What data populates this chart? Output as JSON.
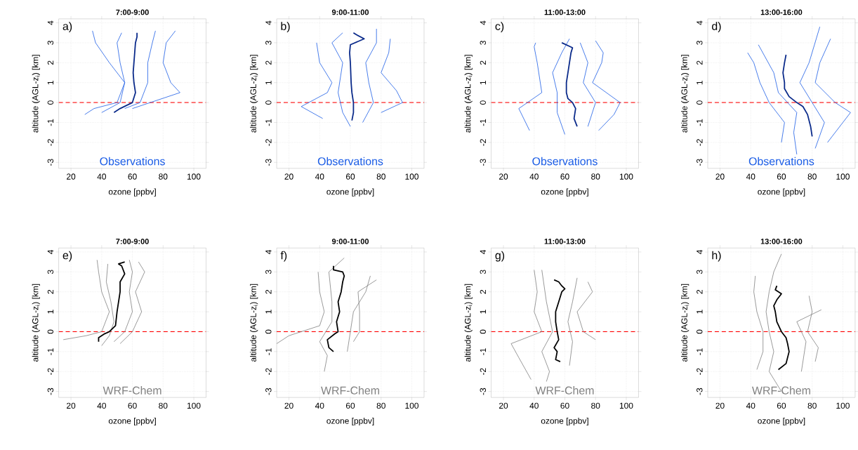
{
  "chart_data": [
    {
      "type": "line",
      "title": "7:00-9:00",
      "xlabel": "ozone [ppbv]",
      "ylabel": "altitude (AGL-z$_{i}$) [km]",
      "annotations": [
        "a)",
        "Observations"
      ],
      "xlim": [
        12,
        108
      ],
      "ylim": [
        -3.3,
        4.2
      ],
      "xticks": [
        20,
        40,
        60,
        80,
        100
      ],
      "yticks": [
        -3,
        -2,
        -1,
        0,
        1,
        2,
        3,
        4
      ],
      "grid": true,
      "ref_lines": [
        {
          "axis": "y",
          "value": 0,
          "color": "#ff0000",
          "line_style": "dashed"
        }
      ],
      "series": [
        {
          "color": "#1a5ce6",
          "x": [
            29,
            35,
            50,
            55,
            45,
            36,
            34
          ],
          "values": [
            -0.6,
            -0.3,
            0,
            1,
            2,
            3,
            3.6
          ]
        },
        {
          "color": "#1a5ce6",
          "x": [
            60,
            91,
            85,
            80,
            82,
            88
          ],
          "values": [
            -0.3,
            0.5,
            1,
            2,
            3,
            3.6
          ]
        },
        {
          "color": "#1a5ce6",
          "x": [
            40,
            52,
            55,
            52,
            50,
            53
          ],
          "values": [
            -0.5,
            0,
            1,
            2,
            3,
            3.5
          ]
        },
        {
          "color": "#1a5ce6",
          "x": [
            55,
            65,
            70,
            70,
            73,
            75
          ],
          "values": [
            -0.3,
            0,
            1,
            2,
            3,
            3.6
          ]
        },
        {
          "color": "#0a2a8a",
          "x": [
            48,
            52,
            60,
            62,
            61,
            60.5,
            61,
            61.5,
            62,
            63,
            63
          ],
          "values": [
            -0.5,
            -0.3,
            0,
            0.5,
            1,
            1.5,
            2,
            2.5,
            3,
            3.3,
            3.5
          ]
        }
      ]
    },
    {
      "type": "line",
      "title": "9:00-11:00",
      "xlabel": "ozone [ppbv]",
      "ylabel": "altitude (AGL-z$_{i}$) [km]",
      "annotations": [
        "b)",
        "Observations"
      ],
      "xlim": [
        12,
        108
      ],
      "ylim": [
        -3.3,
        4.2
      ],
      "xticks": [
        20,
        40,
        60,
        80,
        100
      ],
      "yticks": [
        -3,
        -2,
        -1,
        0,
        1,
        2,
        3,
        4
      ],
      "grid": true,
      "ref_lines": [
        {
          "axis": "y",
          "value": 0,
          "color": "#ff0000",
          "line_style": "dashed"
        }
      ],
      "series": [
        {
          "color": "#1a5ce6",
          "x": [
            42,
            28,
            45,
            48,
            40,
            38
          ],
          "values": [
            -0.8,
            -0.2,
            0.5,
            1,
            2,
            3
          ]
        },
        {
          "color": "#1a5ce6",
          "x": [
            80,
            94,
            90,
            80,
            85,
            86
          ],
          "values": [
            -0.5,
            0,
            0.6,
            1.5,
            2.5,
            3.2
          ]
        },
        {
          "color": "#1a5ce6",
          "x": [
            60,
            55,
            52,
            55,
            48,
            55
          ],
          "values": [
            -1.2,
            -0.5,
            0.5,
            2,
            3,
            3.5
          ]
        },
        {
          "color": "#1a5ce6",
          "x": [
            68,
            75,
            72,
            70,
            77,
            77
          ],
          "values": [
            -1,
            0,
            1,
            2,
            3,
            3.7
          ]
        },
        {
          "color": "#0a2a8a",
          "x": [
            61,
            62,
            62,
            61,
            60.5,
            60,
            59.5,
            60,
            69,
            64,
            62
          ],
          "values": [
            -0.9,
            -0.5,
            0,
            0.5,
            1,
            2,
            2.5,
            2.9,
            3.2,
            3.4,
            3.5
          ]
        }
      ]
    },
    {
      "type": "line",
      "title": "11:00-13:00",
      "xlabel": "ozone [ppbv]",
      "ylabel": "altitude (AGL-z$_{i}$) [km]",
      "annotations": [
        "c)",
        "Observations"
      ],
      "xlim": [
        12,
        108
      ],
      "ylim": [
        -3.3,
        4.2
      ],
      "xticks": [
        20,
        40,
        60,
        80,
        100
      ],
      "yticks": [
        -3,
        -2,
        -1,
        0,
        1,
        2,
        3,
        4
      ],
      "grid": true,
      "ref_lines": [
        {
          "axis": "y",
          "value": 0,
          "color": "#ff0000",
          "line_style": "dashed"
        }
      ],
      "series": [
        {
          "color": "#1a5ce6",
          "x": [
            37,
            30,
            45,
            42,
            40,
            41
          ],
          "values": [
            -1.4,
            -0.3,
            0.5,
            2,
            2.8,
            3.0
          ]
        },
        {
          "color": "#1a5ce6",
          "x": [
            82,
            92,
            96,
            78,
            84,
            85,
            80
          ],
          "values": [
            -1.4,
            -0.6,
            0,
            1,
            2,
            2.5,
            3.1
          ]
        },
        {
          "color": "#1a5ce6",
          "x": [
            60,
            55,
            55,
            52,
            58,
            63
          ],
          "values": [
            -1.6,
            -0.5,
            0.5,
            1.5,
            2.5,
            3.2
          ]
        },
        {
          "color": "#1a5ce6",
          "x": [
            75,
            80,
            72,
            75,
            70
          ],
          "values": [
            -1.2,
            0,
            1,
            2,
            3
          ]
        },
        {
          "color": "#0a2a8a",
          "x": [
            68,
            66,
            67,
            65,
            62,
            61,
            61,
            62,
            63,
            64,
            65,
            58
          ],
          "values": [
            -1.2,
            -0.8,
            -0.3,
            0,
            0.2,
            0.5,
            1,
            1.5,
            2,
            2.5,
            2.75,
            3.0
          ]
        }
      ]
    },
    {
      "type": "line",
      "title": "13:00-16:00",
      "xlabel": "ozone [ppbv]",
      "ylabel": "altitude (AGL-z$_{i}$) [km]",
      "annotations": [
        "d)",
        "Observations"
      ],
      "xlim": [
        12,
        108
      ],
      "ylim": [
        -3.3,
        4.2
      ],
      "xticks": [
        20,
        40,
        60,
        80,
        100
      ],
      "yticks": [
        -3,
        -2,
        -1,
        0,
        1,
        2,
        3,
        4
      ],
      "grid": true,
      "ref_lines": [
        {
          "axis": "y",
          "value": 0,
          "color": "#ff0000",
          "line_style": "dashed"
        }
      ],
      "series": [
        {
          "color": "#1a5ce6",
          "x": [
            60,
            62,
            52,
            46,
            42,
            38
          ],
          "values": [
            -2.0,
            -1,
            0,
            1,
            2,
            2.5
          ]
        },
        {
          "color": "#1a5ce6",
          "x": [
            90,
            100,
            105,
            95,
            82,
            85,
            92
          ],
          "values": [
            -2.0,
            -1,
            -0.5,
            0,
            1,
            2,
            3.2
          ]
        },
        {
          "color": "#1a5ce6",
          "x": [
            70,
            68,
            70,
            58,
            55,
            45
          ],
          "values": [
            -2.6,
            -1.5,
            -0.5,
            0.5,
            1.5,
            2.9
          ]
        },
        {
          "color": "#1a5ce6",
          "x": [
            82,
            88,
            80,
            72,
            78,
            85
          ],
          "values": [
            -2.3,
            -1,
            0,
            1,
            2,
            3.8
          ]
        },
        {
          "color": "#0a2a8a",
          "x": [
            80,
            79,
            77,
            74,
            70,
            65,
            62,
            62,
            61,
            62,
            63
          ],
          "values": [
            -1.7,
            -1.2,
            -0.6,
            -0.2,
            0,
            0.3,
            0.7,
            1,
            1.5,
            2,
            2.4
          ]
        }
      ]
    },
    {
      "type": "line",
      "title": "7:00-9:00",
      "xlabel": "ozone [ppbv]",
      "ylabel": "altitude (AGL-z$_{i}$) [km]",
      "annotations": [
        "e)",
        "WRF-Chem"
      ],
      "xlim": [
        12,
        108
      ],
      "ylim": [
        -3.3,
        4.2
      ],
      "xticks": [
        20,
        40,
        60,
        80,
        100
      ],
      "yticks": [
        -3,
        -2,
        -1,
        0,
        1,
        2,
        3,
        4
      ],
      "grid": true,
      "ref_lines": [
        {
          "axis": "y",
          "value": 0,
          "color": "#ff0000",
          "line_style": "dashed"
        }
      ],
      "series": [
        {
          "color": "#808080",
          "x": [
            15,
            30,
            40,
            45,
            40,
            38,
            37
          ],
          "values": [
            -0.4,
            -0.2,
            0,
            1,
            2,
            3,
            3.6
          ]
        },
        {
          "color": "#808080",
          "x": [
            52,
            60,
            66,
            62,
            68,
            64
          ],
          "values": [
            -0.6,
            0,
            1,
            2,
            3,
            3.5
          ]
        },
        {
          "color": "#808080",
          "x": [
            40,
            45,
            48,
            46,
            43,
            44
          ],
          "values": [
            -0.7,
            -0.2,
            0.5,
            1.5,
            2.5,
            3.4
          ]
        },
        {
          "color": "#808080",
          "x": [
            48,
            55,
            60,
            58,
            60,
            58
          ],
          "values": [
            -0.5,
            0,
            1,
            2,
            3,
            3.6
          ]
        },
        {
          "color": "#000000",
          "x": [
            38,
            38,
            42,
            45,
            49,
            50,
            52,
            52,
            55,
            53,
            51,
            55
          ],
          "values": [
            -0.5,
            -0.3,
            -0.1,
            0,
            0.3,
            1,
            2,
            2.5,
            2.9,
            3.3,
            3.4,
            3.5
          ]
        }
      ]
    },
    {
      "type": "line",
      "title": "9:00-11:00",
      "xlabel": "ozone [ppbv]",
      "ylabel": "altitude (AGL-z$_{i}$) [km]",
      "annotations": [
        "f)",
        "WRF-Chem"
      ],
      "xlim": [
        12,
        108
      ],
      "ylim": [
        -3.3,
        4.2
      ],
      "xticks": [
        20,
        40,
        60,
        80,
        100
      ],
      "yticks": [
        -3,
        -2,
        -1,
        0,
        1,
        2,
        3,
        4
      ],
      "grid": true,
      "ref_lines": [
        {
          "axis": "y",
          "value": 0,
          "color": "#ff0000",
          "line_style": "dashed"
        }
      ],
      "series": [
        {
          "color": "#808080",
          "x": [
            12,
            20,
            40,
            43,
            40,
            39
          ],
          "values": [
            -0.6,
            -0.2,
            0.3,
            1,
            2,
            3.0
          ]
        },
        {
          "color": "#808080",
          "x": [
            62,
            66,
            66,
            65,
            77
          ],
          "values": [
            -0.5,
            0,
            1,
            2,
            2.6
          ]
        },
        {
          "color": "#808080",
          "x": [
            43,
            45,
            40,
            48,
            48,
            46,
            56
          ],
          "values": [
            -2.0,
            -1.2,
            -0.5,
            0.5,
            1.5,
            3,
            3.7
          ]
        },
        {
          "color": "#808080",
          "x": [
            58,
            60,
            62,
            70,
            73
          ],
          "values": [
            -1.0,
            0,
            1,
            2,
            2.8
          ]
        },
        {
          "color": "#000000",
          "x": [
            49,
            46,
            45,
            50,
            52,
            51,
            53,
            52,
            54,
            55,
            56,
            55,
            49,
            49
          ],
          "values": [
            -1.0,
            -0.8,
            -0.4,
            -0.1,
            0,
            0.5,
            1,
            1.5,
            2,
            2.5,
            2.8,
            3.0,
            3.1,
            3.3
          ]
        }
      ]
    },
    {
      "type": "line",
      "title": "11:00-13:00",
      "xlabel": "ozone [ppbv]",
      "ylabel": "altitude (AGL-z$_{i}$) [km]",
      "annotations": [
        "g)",
        "WRF-Chem"
      ],
      "xlim": [
        12,
        108
      ],
      "ylim": [
        -3.3,
        4.2
      ],
      "xticks": [
        20,
        40,
        60,
        80,
        100
      ],
      "yticks": [
        -3,
        -2,
        -1,
        0,
        1,
        2,
        3,
        4
      ],
      "grid": true,
      "ref_lines": [
        {
          "axis": "y",
          "value": 0,
          "color": "#ff0000",
          "line_style": "dashed"
        }
      ],
      "series": [
        {
          "color": "#808080",
          "x": [
            38,
            30,
            25,
            45,
            40,
            42,
            40
          ],
          "values": [
            -2.4,
            -1.3,
            -0.6,
            0,
            1,
            2,
            3.1
          ]
        },
        {
          "color": "#808080",
          "x": [
            80,
            72,
            68,
            78,
            75
          ],
          "values": [
            -0.4,
            0,
            1,
            2,
            2.5
          ]
        },
        {
          "color": "#808080",
          "x": [
            48,
            50,
            45,
            52,
            48,
            45
          ],
          "values": [
            -2.5,
            -2,
            -1,
            0,
            1.5,
            3.1
          ]
        },
        {
          "color": "#808080",
          "x": [
            63,
            65,
            62,
            65,
            68
          ],
          "values": [
            -1.7,
            -0.5,
            0.5,
            1.5,
            2.7
          ]
        },
        {
          "color": "#000000",
          "x": [
            57,
            54,
            55,
            53,
            56,
            55,
            54,
            54,
            56,
            58,
            60,
            58,
            56,
            53
          ],
          "values": [
            -1.5,
            -1.4,
            -1.0,
            -0.8,
            -0.4,
            0,
            0.5,
            1,
            1.5,
            2.0,
            2.15,
            2.3,
            2.5,
            2.6
          ]
        }
      ]
    },
    {
      "type": "line",
      "title": "13:00-16:00",
      "xlabel": "ozone [ppbv]",
      "ylabel": "altitude (AGL-z$_{i}$) [km]",
      "annotations": [
        "h)",
        "WRF-Chem"
      ],
      "xlim": [
        12,
        108
      ],
      "ylim": [
        -3.3,
        4.2
      ],
      "xticks": [
        20,
        40,
        60,
        80,
        100
      ],
      "yticks": [
        -3,
        -2,
        -1,
        0,
        1,
        2,
        3,
        4
      ],
      "grid": true,
      "ref_lines": [
        {
          "axis": "y",
          "value": 0,
          "color": "#ff0000",
          "line_style": "dashed"
        }
      ],
      "series": [
        {
          "color": "#808080",
          "x": [
            44,
            48,
            48,
            44,
            42,
            43
          ],
          "values": [
            -1.9,
            -1,
            0,
            1,
            2,
            2.8
          ]
        },
        {
          "color": "#808080",
          "x": [
            82,
            84,
            77,
            80,
            78
          ],
          "values": [
            -1.5,
            -0.8,
            0,
            1,
            1.8
          ]
        },
        {
          "color": "#808080",
          "x": [
            60,
            52,
            55,
            52,
            50,
            52,
            55,
            60
          ],
          "values": [
            -3.0,
            -2,
            -1,
            0,
            1,
            2,
            3,
            3.9
          ]
        },
        {
          "color": "#808080",
          "x": [
            73,
            76,
            70,
            86
          ],
          "values": [
            -2,
            -0.5,
            0.5,
            1.1
          ]
        },
        {
          "color": "#000000",
          "x": [
            58,
            63,
            65,
            64,
            63,
            60,
            57,
            56,
            55,
            57,
            60,
            56,
            57
          ],
          "values": [
            -1.9,
            -1.6,
            -1.0,
            -0.6,
            -0.3,
            0,
            0.5,
            1,
            1.3,
            1.6,
            1.9,
            2.1,
            2.3
          ]
        }
      ]
    }
  ]
}
